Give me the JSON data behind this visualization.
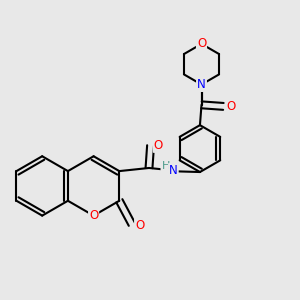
{
  "background_color": "#e8e8e8",
  "bond_color": "#000000",
  "atom_colors": {
    "O": "#ff0000",
    "N": "#0000ff",
    "H": "#4a9a8a",
    "C": "#000000"
  },
  "figsize": [
    3.0,
    3.0
  ],
  "dpi": 100
}
